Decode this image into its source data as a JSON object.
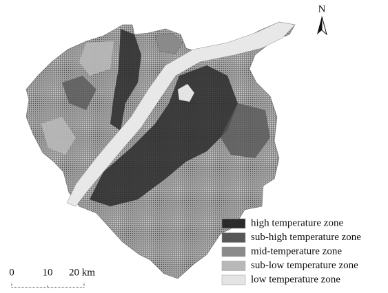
{
  "north_label": "N",
  "legend": {
    "items": [
      {
        "label": "high temperature zone",
        "color": "#2b2b2b"
      },
      {
        "label": "sub-high temperature zone",
        "color": "#575757"
      },
      {
        "label": "mid-temperature zone",
        "color": "#8a8a8a"
      },
      {
        "label": "sub-low temperature zone",
        "color": "#b8b8b8"
      },
      {
        "label": "low temperature zone",
        "color": "#e4e4e4"
      }
    ]
  },
  "scale_bar": {
    "labels": [
      "0",
      "10",
      "20 km"
    ]
  }
}
